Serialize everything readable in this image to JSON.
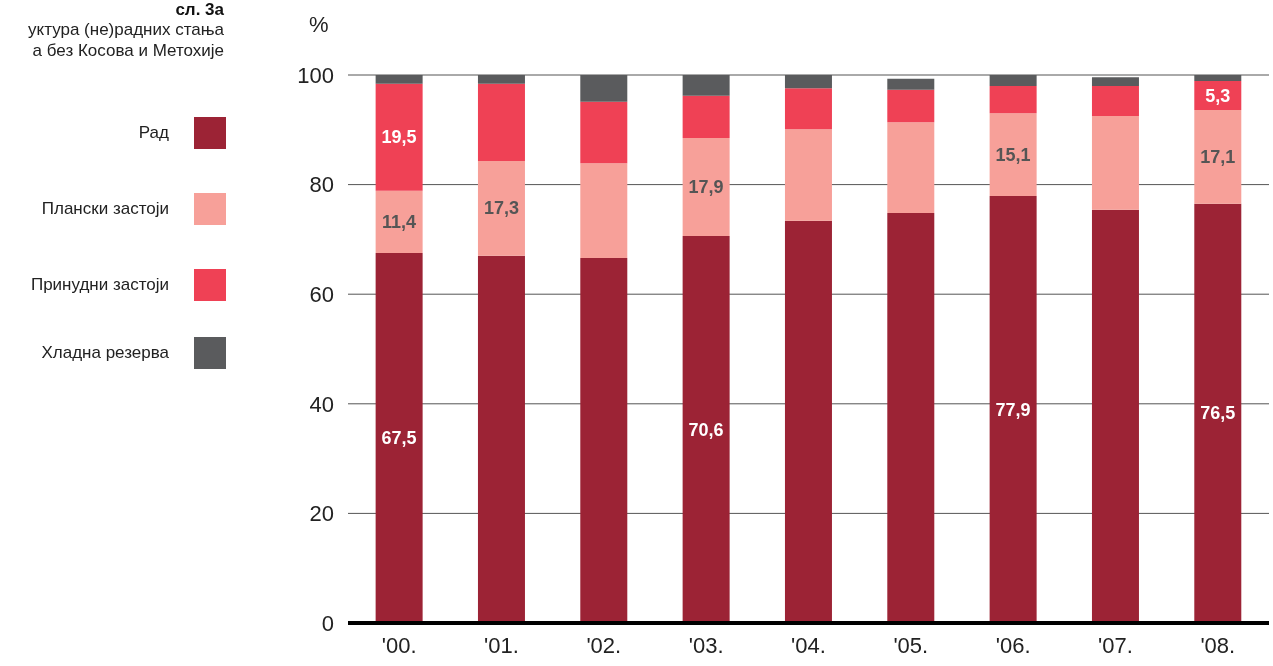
{
  "chart_data": {
    "type": "bar",
    "title": "сл. 3а",
    "subtitle": "уктура (не)радних стања\nа без Косова и Метохије",
    "ylabel": "%",
    "categories": [
      "'00.",
      "'01.",
      "'02.",
      "'03.",
      "'04.",
      "'05.",
      "'06.",
      "'07.",
      "'08."
    ],
    "stacked": true,
    "ylim": [
      0,
      100
    ],
    "yticks": [
      0,
      20,
      40,
      60,
      80,
      100
    ],
    "grid": "y",
    "legend": "left",
    "series": [
      {
        "name": "Рад",
        "color": "#9c2335",
        "values": [
          67.5,
          67.0,
          66.6,
          70.6,
          73.4,
          74.8,
          77.9,
          75.4,
          76.5
        ],
        "value_labels": [
          "67,5",
          null,
          null,
          "70,6",
          null,
          null,
          "77,9",
          null,
          "76,5"
        ]
      },
      {
        "name": "Плански застоји",
        "color": "#f7a099",
        "values": [
          11.4,
          17.3,
          17.3,
          17.9,
          16.7,
          16.6,
          15.1,
          17.1,
          17.1
        ],
        "value_labels": [
          "11,4",
          "17,3",
          null,
          "17,9",
          null,
          null,
          "15,1",
          null,
          "17,1"
        ]
      },
      {
        "name": "Принудни застоји",
        "color": "#ef4155",
        "values": [
          19.5,
          14.1,
          11.2,
          7.7,
          7.5,
          5.9,
          5.0,
          5.5,
          5.3
        ],
        "value_labels": [
          "19,5",
          null,
          null,
          null,
          null,
          null,
          null,
          null,
          "5,3"
        ]
      },
      {
        "name": "Хладна резерва",
        "color": "#5a5b5d",
        "values": [
          1.6,
          1.6,
          4.9,
          3.8,
          2.4,
          2.0,
          2.0,
          1.6,
          1.1
        ]
      }
    ]
  }
}
